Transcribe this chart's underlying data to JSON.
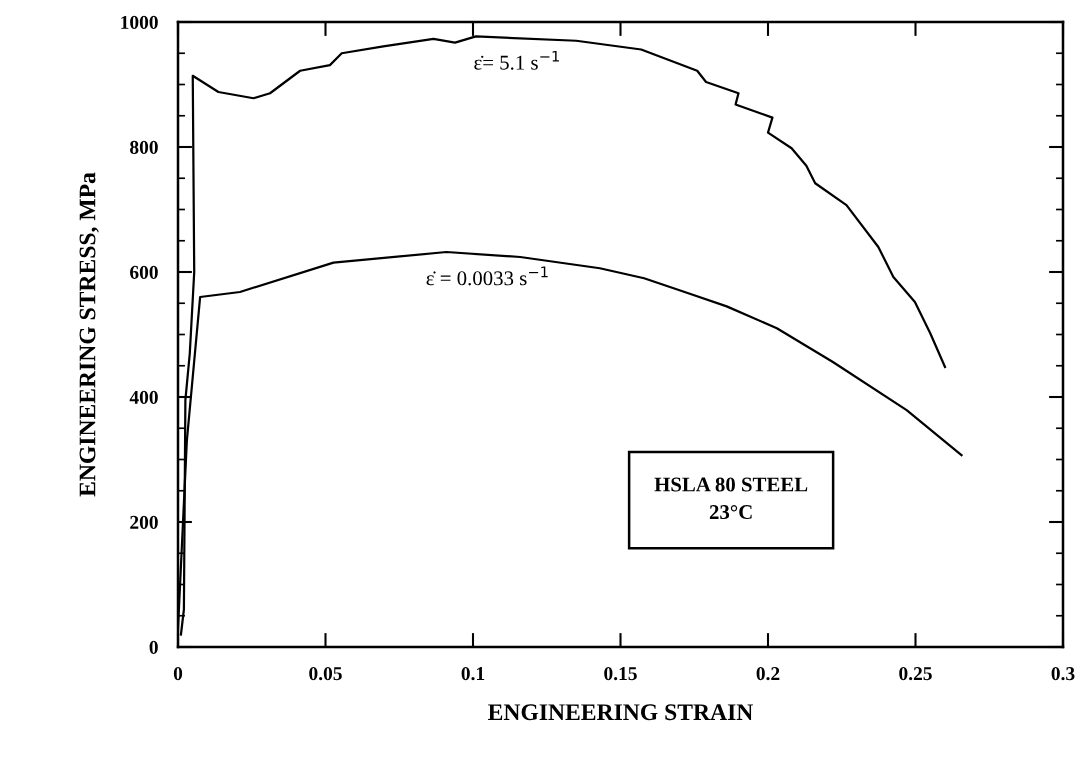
{
  "chart_data": {
    "type": "line",
    "xlabel": "ENGINEERING STRAIN",
    "ylabel": "ENGINEERING STRESS, MPa",
    "xlim": [
      0,
      0.3
    ],
    "ylim": [
      0,
      1000
    ],
    "xticks": [
      0,
      0.05,
      0.1,
      0.15,
      0.2,
      0.25,
      0.3
    ],
    "yticks": [
      0,
      200,
      400,
      600,
      800,
      1000
    ],
    "grid": false,
    "marker": "none",
    "line_style": "solid",
    "series": [
      {
        "name": "ε̇= 5.1 s$^{−1}$",
        "color": "#000000",
        "x": [
          0.001,
          0.002,
          0.0025,
          0.004,
          0.0055,
          0.005,
          0.0137,
          0.0256,
          0.0312,
          0.0414,
          0.0515,
          0.0555,
          0.0696,
          0.0866,
          0.0939,
          0.101,
          0.135,
          0.157,
          0.176,
          0.179,
          0.19,
          0.189,
          0.2015,
          0.2,
          0.208,
          0.213,
          0.216,
          0.2266,
          0.2374,
          0.2425,
          0.2498,
          0.255,
          0.26
        ],
        "values": [
          20,
          60,
          395,
          470,
          600,
          914,
          888,
          878,
          886,
          922,
          931,
          950,
          961,
          973,
          967,
          977,
          970,
          956,
          922,
          904,
          886,
          868,
          847,
          823,
          798,
          770,
          742,
          707,
          640,
          592,
          552,
          502,
          448
        ]
      },
      {
        "name": "ε̇ = 0.0033 s$^{−1}$",
        "color": "#000000",
        "x": [
          0.0,
          0.003,
          0.0075,
          0.021,
          0.0527,
          0.091,
          0.116,
          0.143,
          0.158,
          0.173,
          0.186,
          0.203,
          0.222,
          0.247,
          0.2656
        ],
        "values": [
          30,
          330,
          560,
          568,
          615,
          632,
          624,
          606,
          590,
          566,
          545,
          510,
          456,
          379,
          307
        ]
      }
    ],
    "annotations": [
      "HSLA 80 STEEL\n23°C"
    ]
  }
}
